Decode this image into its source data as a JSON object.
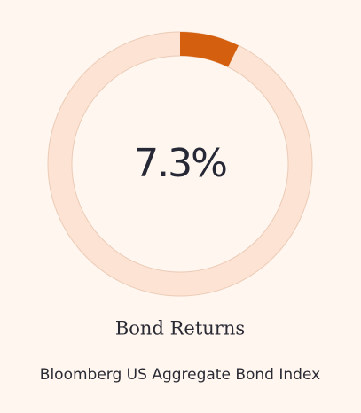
{
  "chart_data": {
    "type": "donut",
    "title": "Bond Returns",
    "subtitle": "Bloomberg US Aggregate Bond Index",
    "values": [
      7.3
    ],
    "value_labels": [
      "7.3%"
    ],
    "ylim": [
      0,
      100
    ],
    "color": "#d4600f",
    "track_color": "#fce3d3"
  }
}
